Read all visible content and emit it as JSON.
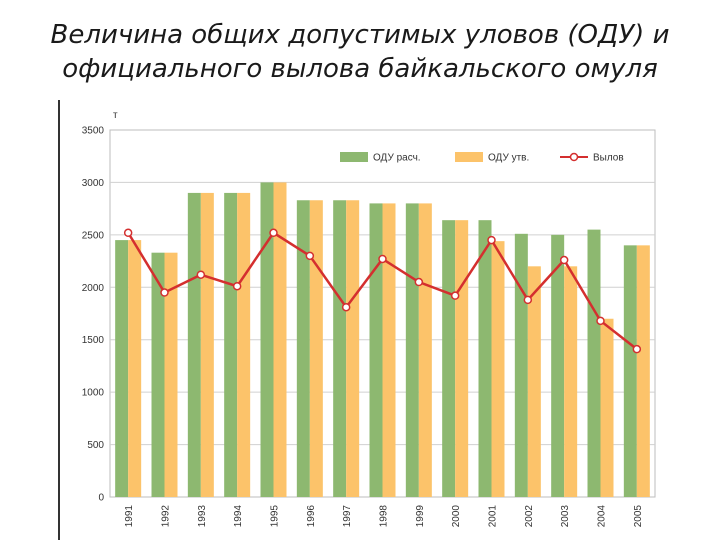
{
  "title": {
    "line1": "Величина общих допустимых уловов (ОДУ) и",
    "line2": "официального вылова байкальского омуля"
  },
  "chart_data": {
    "type": "bar",
    "ylabel": "т",
    "ylim": [
      0,
      3500
    ],
    "yticks": [
      0,
      500,
      1000,
      1500,
      2000,
      2500,
      3000,
      3500
    ],
    "categories": [
      "1991",
      "1992",
      "1993",
      "1994",
      "1995",
      "1996",
      "1997",
      "1998",
      "1999",
      "2000",
      "2001",
      "2002",
      "2003",
      "2004",
      "2005"
    ],
    "series": [
      {
        "name": "ОДУ расч.",
        "kind": "bar",
        "color": "#8db870",
        "values": [
          2450,
          2330,
          2900,
          2900,
          3000,
          2830,
          2830,
          2800,
          2800,
          2640,
          2640,
          2510,
          2500,
          2550,
          2400
        ]
      },
      {
        "name": "ОДУ утв.",
        "kind": "bar",
        "color": "#fcc36a",
        "values": [
          2450,
          2330,
          2900,
          2900,
          3000,
          2830,
          2830,
          2800,
          2800,
          2640,
          2440,
          2200,
          2200,
          1700,
          2400
        ]
      },
      {
        "name": "Вылов",
        "kind": "line",
        "color": "#d42f2f",
        "values": [
          2520,
          1950,
          2120,
          2010,
          2520,
          2300,
          1810,
          2270,
          2050,
          1920,
          2450,
          1880,
          2260,
          1680,
          1410
        ]
      }
    ],
    "grid": true,
    "legend": "top-right"
  }
}
